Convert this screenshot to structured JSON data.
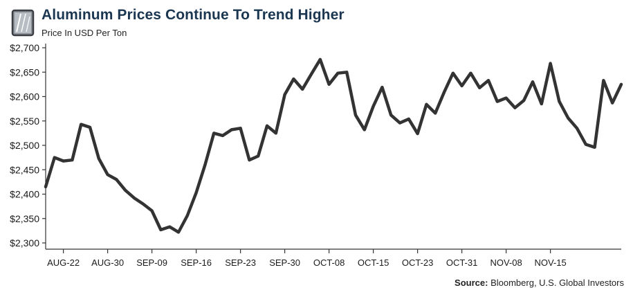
{
  "header": {
    "title": "Aluminum Prices Continue To Trend Higher",
    "subtitle": "Price In USD Per Ton",
    "logo_icon": "aluminum-sheet-icon"
  },
  "source": {
    "label": "Source:",
    "text": "Bloomberg, U.S. Global Investors"
  },
  "colors": {
    "line": "#333333",
    "title": "#1a3650",
    "axis": "#333333"
  },
  "chart_data": {
    "type": "line",
    "title": "Aluminum Prices Continue To Trend Higher",
    "ylabel": "Price In USD Per Ton",
    "xlabel": "",
    "ylim": [
      2300,
      2700
    ],
    "yticks": [
      2300,
      2350,
      2400,
      2450,
      2500,
      2550,
      2600,
      2650,
      2700
    ],
    "ytick_labels": [
      "$2,300",
      "$2,350",
      "$2,400",
      "$2,450",
      "$2,500",
      "$2,550",
      "$2,600",
      "$2,650",
      "$2,700"
    ],
    "xtick_labels": [
      "AUG-22",
      "AUG-30",
      "SEP-09",
      "SEP-16",
      "SEP-23",
      "SEP-30",
      "OCT-08",
      "OCT-15",
      "OCT-23",
      "OCT-31",
      "NOV-08",
      "NOV-15"
    ],
    "xtick_index": [
      2,
      7,
      12,
      17,
      22,
      27,
      32,
      37,
      42,
      47,
      52,
      57
    ],
    "grid": false,
    "legend": "none",
    "series": [
      {
        "values": [
          2415,
          2475,
          2468,
          2470,
          2543,
          2537,
          2473,
          2440,
          2430,
          2408,
          2392,
          2380,
          2366,
          2327,
          2333,
          2322,
          2356,
          2403,
          2460,
          2525,
          2520,
          2532,
          2535,
          2470,
          2478,
          2540,
          2525,
          2604,
          2636,
          2615,
          2646,
          2676,
          2625,
          2648,
          2650,
          2562,
          2532,
          2580,
          2619,
          2562,
          2546,
          2554,
          2524,
          2584,
          2566,
          2609,
          2648,
          2622,
          2648,
          2618,
          2633,
          2590,
          2597,
          2577,
          2592,
          2630,
          2585,
          2668,
          2590,
          2556,
          2535,
          2502,
          2496,
          2633,
          2587,
          2625
        ]
      }
    ]
  }
}
